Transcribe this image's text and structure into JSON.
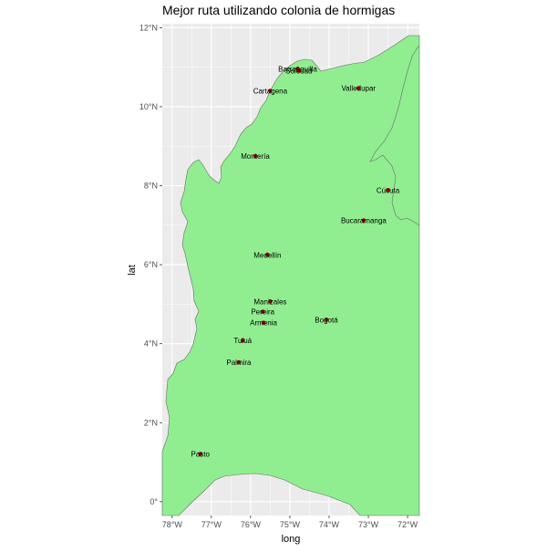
{
  "title": "Mejor ruta utilizando colonia de hormigas",
  "xlabel": "long",
  "ylabel": "lat",
  "xticks": [
    "78°W",
    "77°W",
    "76°W",
    "75°W",
    "74°W",
    "73°W",
    "72°W"
  ],
  "yticks": [
    "0°",
    "2°N",
    "4°N",
    "6°N",
    "8°N",
    "10°N",
    "12°N"
  ],
  "colors": {
    "panel": "#ebebeb",
    "grid": "#ffffff",
    "land": "#90ee90",
    "outline": "#6b6b6b",
    "point": "#b00000"
  },
  "chart_data": {
    "type": "scatter",
    "xlim": [
      -78.25,
      -71.7
    ],
    "ylim": [
      -0.35,
      12.1
    ],
    "grid": true,
    "points": [
      {
        "name": "Barranquilla",
        "long": -74.8,
        "lat": 10.96
      },
      {
        "name": "Soledad",
        "long": -74.77,
        "lat": 10.91
      },
      {
        "name": "Cartagena",
        "long": -75.5,
        "lat": 10.4
      },
      {
        "name": "Valledupar",
        "long": -73.25,
        "lat": 10.47
      },
      {
        "name": "Montería",
        "long": -75.88,
        "lat": 8.75
      },
      {
        "name": "Cúcuta",
        "long": -72.5,
        "lat": 7.89
      },
      {
        "name": "Bucaramanga",
        "long": -73.12,
        "lat": 7.12
      },
      {
        "name": "Medellín",
        "long": -75.57,
        "lat": 6.25
      },
      {
        "name": "Manizales",
        "long": -75.5,
        "lat": 5.07
      },
      {
        "name": "Pereira",
        "long": -75.69,
        "lat": 4.81
      },
      {
        "name": "Bogotá",
        "long": -74.07,
        "lat": 4.61
      },
      {
        "name": "Armenia",
        "long": -75.67,
        "lat": 4.53
      },
      {
        "name": "Tuluá",
        "long": -76.2,
        "lat": 4.08
      },
      {
        "name": "Palmira",
        "long": -76.3,
        "lat": 3.53
      },
      {
        "name": "Pasto",
        "long": -77.28,
        "lat": 1.21
      }
    ]
  }
}
